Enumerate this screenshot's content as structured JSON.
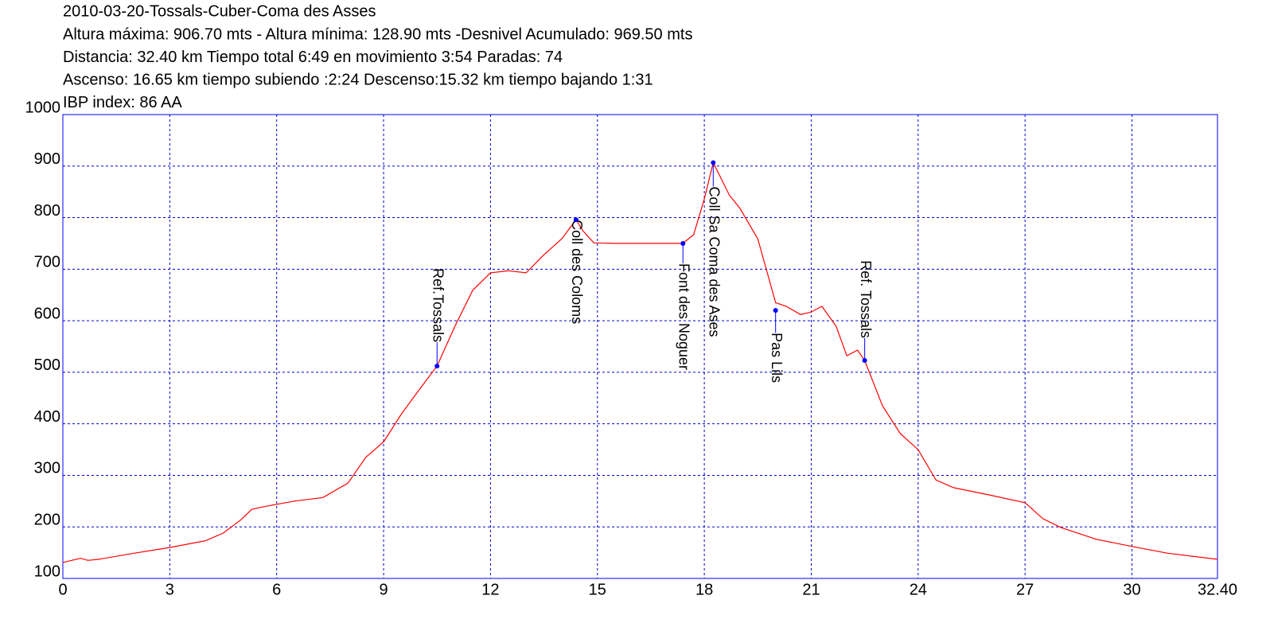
{
  "chart_data": {
    "type": "line",
    "title": "2010-03-20-Tossals-Cuber-Coma des Asses",
    "subtitles": [
      "Altura máxima: 906.70 mts - Altura mínima: 128.90 mts -Desnivel Acumulado: 969.50 mts",
      "Distancia: 32.40 km  Tiempo total 6:49  en movimiento 3:54 Paradas: 74",
      "Ascenso: 16.65 km  tiempo subiendo :2:24  Descenso:15.32 km tiempo bajando 1:31",
      "IBP index: 86 AA"
    ],
    "x": [
      0,
      0.5,
      0.7,
      1,
      2,
      3,
      4,
      4.5,
      5,
      5.3,
      5.7,
      6.5,
      7.3,
      8,
      8.5,
      9,
      9.5,
      10,
      10.5,
      11,
      11.5,
      12,
      12.5,
      13,
      13.5,
      14,
      14.4,
      14.6,
      14.9,
      15.5,
      16.5,
      17.4,
      17.7,
      18,
      18.25,
      18.7,
      19,
      19.5,
      20,
      20.3,
      20.7,
      21,
      21.3,
      21.7,
      22,
      22.3,
      22.5,
      23,
      23.5,
      24,
      24.5,
      25,
      26,
      27,
      27.5,
      28,
      29,
      30,
      31,
      32.4
    ],
    "values": [
      131,
      139,
      135,
      137,
      149,
      160,
      173,
      188,
      214,
      234,
      240,
      250,
      257,
      285,
      335,
      365,
      419,
      466,
      512,
      589,
      659,
      693,
      697,
      693,
      728,
      759,
      796,
      774,
      751,
      750,
      750,
      750,
      767,
      836,
      906.7,
      844,
      818,
      759,
      635,
      628,
      612,
      617,
      628,
      589,
      532,
      543,
      523,
      435,
      381,
      350,
      291,
      276,
      262,
      247,
      216,
      199,
      176,
      162,
      149,
      137
    ],
    "color": "#ff0000",
    "annotations": [
      {
        "label": "Ref.Tossals",
        "x": 10.5,
        "y": 512
      },
      {
        "label": "Coll des Coloms",
        "x": 14.4,
        "y": 796
      },
      {
        "label": "Font des Noguer",
        "x": 17.4,
        "y": 750
      },
      {
        "label": "Coll Sa Coma des Ases",
        "x": 18.25,
        "y": 906.7
      },
      {
        "label": "Pas Lils",
        "x": 20,
        "y": 620
      },
      {
        "label": "Ref. Tossals",
        "x": 22.5,
        "y": 523
      }
    ],
    "xlim": [
      0,
      32.4
    ],
    "xticks": [
      0,
      3,
      6,
      9,
      12,
      15,
      18,
      21,
      24,
      27,
      30,
      {
        "value": 32.4,
        "label": "32.40"
      }
    ],
    "ylim": [
      100,
      1000
    ],
    "yticks": [
      100,
      200,
      300,
      400,
      500,
      600,
      700,
      800,
      900,
      1000
    ],
    "grid": true
  }
}
